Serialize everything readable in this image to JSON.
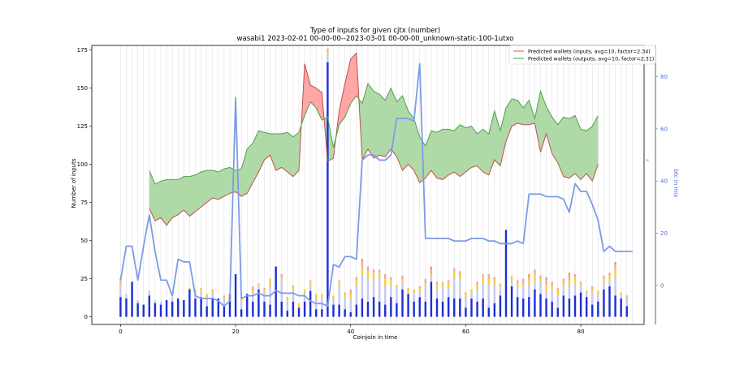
{
  "chart_data": {
    "type": "bar+line+area",
    "title": "Type of inputs for given cjtx (number)",
    "subtitle": "wasabi1 2023-02-01 00-00-00--2023-03-01 00-00-00_unknown-static-100-1utxo",
    "xlabel": "Coinjoin in time",
    "ylabel": "Number of inputs",
    "y2label": "btc in mix",
    "xlim": [
      -5,
      91
    ],
    "ylim": [
      -5,
      178
    ],
    "y2lim": [
      -15,
      92
    ],
    "xticks": [
      0,
      20,
      40,
      60,
      80
    ],
    "yticks": [
      0,
      25,
      50,
      75,
      100,
      125,
      150,
      175
    ],
    "y2ticks": [
      0,
      20,
      40,
      60,
      80
    ],
    "right_marker_label": "∞",
    "legend": {
      "placement": "top-right",
      "entries": [
        {
          "label": "Predicted wallets (inputs, avg=10, factor=2.34)",
          "color": "#e8756a"
        },
        {
          "label": "Predicted wallets (outputs, avg=10, factor=2.31)",
          "color": "#58b858"
        }
      ]
    },
    "colors": {
      "bar_blue": "#1c2fd6",
      "bar_lavender": "#c6c9f2",
      "bar_yellow": "#f4cf3a",
      "bar_pink": "#f3a4a4",
      "bar_orange": "#f0a050",
      "line_inputs": "#c0504d",
      "line_outputs": "#4fa04f",
      "fill_green": "#b0d9a8",
      "fill_red": "#ffa6a6",
      "btc_line": "#7e9be4",
      "grid": "#dddddd"
    },
    "predicted_x": [
      5,
      6,
      7,
      8,
      9,
      10,
      11,
      12,
      13,
      14,
      15,
      16,
      17,
      18,
      19,
      20,
      21,
      22,
      23,
      24,
      25,
      26,
      27,
      28,
      29,
      30,
      31,
      32,
      33,
      34,
      35,
      36,
      37,
      38,
      39,
      40,
      41,
      42,
      43,
      44,
      45,
      46,
      47,
      48,
      49,
      50,
      51,
      52,
      53,
      54,
      55,
      56,
      57,
      58,
      59,
      60,
      61,
      62,
      63,
      64,
      65,
      66,
      67,
      68,
      69,
      70,
      71,
      72,
      73,
      74,
      75,
      76,
      77,
      78,
      79,
      80,
      81,
      82,
      83
    ],
    "predicted_inputs": [
      71,
      63,
      65,
      60,
      65,
      67,
      70,
      66,
      69,
      72,
      75,
      78,
      77,
      79,
      81,
      82,
      79,
      81,
      88,
      95,
      103,
      106,
      96,
      98,
      95,
      92,
      96,
      166,
      152,
      150,
      147,
      102,
      104,
      135,
      153,
      169,
      173,
      103,
      110,
      104,
      106,
      105,
      110,
      105,
      96,
      100,
      96,
      88,
      91,
      96,
      91,
      90,
      93,
      95,
      92,
      95,
      98,
      99,
      95,
      93,
      103,
      99,
      115,
      125,
      127,
      126,
      126,
      127,
      108,
      120,
      107,
      101,
      92,
      91,
      94,
      90,
      94,
      89,
      100
    ],
    "predicted_outputs": [
      96,
      87,
      89,
      90,
      90,
      90,
      92,
      92,
      93,
      95,
      96,
      96,
      95,
      97,
      98,
      96,
      97,
      110,
      114,
      122,
      121,
      120,
      120,
      120,
      121,
      118,
      121,
      132,
      141,
      137,
      129,
      131,
      111,
      126,
      131,
      140,
      145,
      140,
      153,
      148,
      146,
      142,
      150,
      141,
      145,
      135,
      130,
      118,
      112,
      122,
      121,
      123,
      123,
      122,
      126,
      124,
      125,
      120,
      123,
      120,
      135,
      122,
      137,
      143,
      142,
      137,
      142,
      130,
      148,
      138,
      131,
      126,
      131,
      130,
      132,
      123,
      122,
      125,
      132
    ],
    "btc_x": [
      0,
      1,
      2,
      3,
      4,
      5,
      6,
      7,
      8,
      9,
      10,
      11,
      12,
      13,
      14,
      15,
      16,
      17,
      18,
      19,
      20,
      21,
      22,
      23,
      24,
      25,
      26,
      27,
      28,
      29,
      30,
      31,
      32,
      33,
      34,
      35,
      36,
      37,
      38,
      39,
      40,
      41,
      42,
      43,
      44,
      45,
      46,
      47,
      48,
      49,
      50,
      51,
      52,
      53,
      54,
      55,
      56,
      57,
      58,
      59,
      60,
      61,
      62,
      63,
      64,
      65,
      66,
      67,
      68,
      69,
      70,
      71,
      72,
      73,
      74,
      75,
      76,
      77,
      78,
      79,
      80,
      81,
      82,
      83,
      84,
      85,
      86,
      87,
      88,
      89
    ],
    "btc_in_mix": [
      2,
      15,
      15,
      2,
      15,
      27,
      13,
      2,
      2,
      -4,
      10,
      9,
      9,
      -4,
      -5,
      -5,
      -5,
      -6,
      -8,
      -6,
      72,
      -5,
      -4,
      -4,
      -3,
      -4,
      -4,
      -2,
      -3,
      -3,
      -3,
      -4,
      -4,
      -6,
      -7,
      -7,
      -8,
      8,
      7,
      11,
      11,
      10,
      48,
      50,
      50,
      48,
      48,
      50,
      64,
      64,
      64,
      63,
      85,
      18,
      18,
      18,
      18,
      18,
      17,
      17,
      17,
      18,
      18,
      18,
      17,
      17,
      16,
      16,
      16,
      17,
      16,
      35,
      35,
      35,
      34,
      34,
      34,
      33,
      28,
      39,
      36,
      36,
      31,
      25,
      13,
      15,
      13,
      13,
      13,
      13
    ],
    "bars": [
      {
        "x": 0,
        "blue": 13,
        "lavender": 8,
        "yellow": 1,
        "pink": 3,
        "orange": 0
      },
      {
        "x": 1,
        "blue": 12,
        "lavender": 3,
        "yellow": 0,
        "pink": 0,
        "orange": 0
      },
      {
        "x": 2,
        "blue": 23,
        "lavender": 0,
        "yellow": 0,
        "pink": 0,
        "orange": 0
      },
      {
        "x": 3,
        "blue": 9,
        "lavender": 2,
        "yellow": 0,
        "pink": 0,
        "orange": 0
      },
      {
        "x": 4,
        "blue": 8,
        "lavender": 0,
        "yellow": 0,
        "pink": 0,
        "orange": 0
      },
      {
        "x": 5,
        "blue": 14,
        "lavender": 3,
        "yellow": 0,
        "pink": 0,
        "orange": 0
      },
      {
        "x": 6,
        "blue": 9,
        "lavender": 2,
        "yellow": 0,
        "pink": 0,
        "orange": 0
      },
      {
        "x": 7,
        "blue": 8,
        "lavender": 2,
        "yellow": 0,
        "pink": 0,
        "orange": 0
      },
      {
        "x": 8,
        "blue": 11,
        "lavender": 0,
        "yellow": 0,
        "pink": 0,
        "orange": 0
      },
      {
        "x": 9,
        "blue": 10,
        "lavender": 2,
        "yellow": 1,
        "pink": 0,
        "orange": 0
      },
      {
        "x": 10,
        "blue": 12,
        "lavender": 0,
        "yellow": 0,
        "pink": 0,
        "orange": 0
      },
      {
        "x": 11,
        "blue": 11,
        "lavender": 0,
        "yellow": 0,
        "pink": 0,
        "orange": 0
      },
      {
        "x": 12,
        "blue": 18,
        "lavender": 0,
        "yellow": 1,
        "pink": 0,
        "orange": 0
      },
      {
        "x": 13,
        "blue": 12,
        "lavender": 4,
        "yellow": 2,
        "pink": 0,
        "orange": 0
      },
      {
        "x": 14,
        "blue": 13,
        "lavender": 4,
        "yellow": 2,
        "pink": 0,
        "orange": 0
      },
      {
        "x": 15,
        "blue": 7,
        "lavender": 6,
        "yellow": 2,
        "pink": 0,
        "orange": 0
      },
      {
        "x": 16,
        "blue": 12,
        "lavender": 3,
        "yellow": 2,
        "pink": 1,
        "orange": 0
      },
      {
        "x": 17,
        "blue": 12,
        "lavender": 0,
        "yellow": 0,
        "pink": 0,
        "orange": 0
      },
      {
        "x": 18,
        "blue": 7,
        "lavender": 4,
        "yellow": 2,
        "pink": 1,
        "orange": 0
      },
      {
        "x": 19,
        "blue": 15,
        "lavender": 0,
        "yellow": 0,
        "pink": 0,
        "orange": 0
      },
      {
        "x": 20,
        "blue": 28,
        "lavender": 0,
        "yellow": 0,
        "pink": 0,
        "orange": 0
      },
      {
        "x": 21,
        "blue": 5,
        "lavender": 5,
        "yellow": 2,
        "pink": 1,
        "orange": 0
      },
      {
        "x": 22,
        "blue": 15,
        "lavender": 0,
        "yellow": 0,
        "pink": 0,
        "orange": 0
      },
      {
        "x": 23,
        "blue": 10,
        "lavender": 5,
        "yellow": 2,
        "pink": 3,
        "orange": 0
      },
      {
        "x": 24,
        "blue": 18,
        "lavender": 2,
        "yellow": 2,
        "pink": 0,
        "orange": 0
      },
      {
        "x": 25,
        "blue": 10,
        "lavender": 6,
        "yellow": 2,
        "pink": 1,
        "orange": 0
      },
      {
        "x": 26,
        "blue": 8,
        "lavender": 12,
        "yellow": 5,
        "pink": 0,
        "orange": 0
      },
      {
        "x": 27,
        "blue": 33,
        "lavender": 0,
        "yellow": 0,
        "pink": 0,
        "orange": 0
      },
      {
        "x": 28,
        "blue": 10,
        "lavender": 14,
        "yellow": 2,
        "pink": 2,
        "orange": 0
      },
      {
        "x": 29,
        "blue": 4,
        "lavender": 6,
        "yellow": 2,
        "pink": 1,
        "orange": 0
      },
      {
        "x": 30,
        "blue": 10,
        "lavender": 8,
        "yellow": 3,
        "pink": 0,
        "orange": 0
      },
      {
        "x": 31,
        "blue": 6,
        "lavender": 0,
        "yellow": 3,
        "pink": 0,
        "orange": 0
      },
      {
        "x": 32,
        "blue": 10,
        "lavender": 6,
        "yellow": 2,
        "pink": 0,
        "orange": 0
      },
      {
        "x": 33,
        "blue": 17,
        "lavender": 4,
        "yellow": 2,
        "pink": 1,
        "orange": 0
      },
      {
        "x": 34,
        "blue": 5,
        "lavender": 6,
        "yellow": 4,
        "pink": 0,
        "orange": 0
      },
      {
        "x": 35,
        "blue": 5,
        "lavender": 8,
        "yellow": 2,
        "pink": 0,
        "orange": 0
      },
      {
        "x": 36,
        "blue": 167,
        "lavender": 5,
        "yellow": 2,
        "pink": 2,
        "orange": 0
      },
      {
        "x": 37,
        "blue": 8,
        "lavender": 4,
        "yellow": 2,
        "pink": 0,
        "orange": 0
      },
      {
        "x": 38,
        "blue": 8,
        "lavender": 12,
        "yellow": 4,
        "pink": 0,
        "orange": 0
      },
      {
        "x": 39,
        "blue": 5,
        "lavender": 8,
        "yellow": 2,
        "pink": 1,
        "orange": 0
      },
      {
        "x": 40,
        "blue": 3,
        "lavender": 8,
        "yellow": 4,
        "pink": 3,
        "orange": 0
      },
      {
        "x": 41,
        "blue": 8,
        "lavender": 12,
        "yellow": 4,
        "pink": 2,
        "orange": 0
      },
      {
        "x": 42,
        "blue": 12,
        "lavender": 15,
        "yellow": 5,
        "pink": 4,
        "orange": 2
      },
      {
        "x": 43,
        "blue": 10,
        "lavender": 15,
        "yellow": 5,
        "pink": 3,
        "orange": 0
      },
      {
        "x": 44,
        "blue": 13,
        "lavender": 12,
        "yellow": 4,
        "pink": 2,
        "orange": 0
      },
      {
        "x": 45,
        "blue": 10,
        "lavender": 16,
        "yellow": 3,
        "pink": 2,
        "orange": 0
      },
      {
        "x": 46,
        "blue": 8,
        "lavender": 12,
        "yellow": 5,
        "pink": 3,
        "orange": 0
      },
      {
        "x": 47,
        "blue": 13,
        "lavender": 8,
        "yellow": 3,
        "pink": 2,
        "orange": 0
      },
      {
        "x": 48,
        "blue": 9,
        "lavender": 10,
        "yellow": 2,
        "pink": 0,
        "orange": 0
      },
      {
        "x": 49,
        "blue": 18,
        "lavender": 5,
        "yellow": 2,
        "pink": 2,
        "orange": 0
      },
      {
        "x": 50,
        "blue": 15,
        "lavender": 0,
        "yellow": 3,
        "pink": 1,
        "orange": 0
      },
      {
        "x": 51,
        "blue": 10,
        "lavender": 6,
        "yellow": 2,
        "pink": 0,
        "orange": 0
      },
      {
        "x": 52,
        "blue": 13,
        "lavender": 4,
        "yellow": 2,
        "pink": 1,
        "orange": 0
      },
      {
        "x": 53,
        "blue": 10,
        "lavender": 10,
        "yellow": 2,
        "pink": 3,
        "orange": 0
      },
      {
        "x": 54,
        "blue": 23,
        "lavender": 3,
        "yellow": 2,
        "pink": 3,
        "orange": 2
      },
      {
        "x": 55,
        "blue": 12,
        "lavender": 6,
        "yellow": 3,
        "pink": 2,
        "orange": 0
      },
      {
        "x": 56,
        "blue": 10,
        "lavender": 10,
        "yellow": 3,
        "pink": 0,
        "orange": 0
      },
      {
        "x": 57,
        "blue": 13,
        "lavender": 6,
        "yellow": 3,
        "pink": 2,
        "orange": 0
      },
      {
        "x": 58,
        "blue": 12,
        "lavender": 14,
        "yellow": 4,
        "pink": 2,
        "orange": 0
      },
      {
        "x": 59,
        "blue": 12,
        "lavender": 12,
        "yellow": 4,
        "pink": 2,
        "orange": 0
      },
      {
        "x": 60,
        "blue": 6,
        "lavender": 6,
        "yellow": 3,
        "pink": 1,
        "orange": 0
      },
      {
        "x": 61,
        "blue": 12,
        "lavender": 4,
        "yellow": 2,
        "pink": 0,
        "orange": 0
      },
      {
        "x": 62,
        "blue": 10,
        "lavender": 8,
        "yellow": 3,
        "pink": 2,
        "orange": 0
      },
      {
        "x": 63,
        "blue": 12,
        "lavender": 10,
        "yellow": 4,
        "pink": 2,
        "orange": 0
      },
      {
        "x": 64,
        "blue": 6,
        "lavender": 15,
        "yellow": 4,
        "pink": 3,
        "orange": 0
      },
      {
        "x": 65,
        "blue": 9,
        "lavender": 12,
        "yellow": 3,
        "pink": 2,
        "orange": 0
      },
      {
        "x": 66,
        "blue": 14,
        "lavender": 6,
        "yellow": 2,
        "pink": 0,
        "orange": 0
      },
      {
        "x": 67,
        "blue": 57,
        "lavender": 0,
        "yellow": 0,
        "pink": 0,
        "orange": 0
      },
      {
        "x": 68,
        "blue": 20,
        "lavender": 5,
        "yellow": 2,
        "pink": 0,
        "orange": 0
      },
      {
        "x": 69,
        "blue": 13,
        "lavender": 6,
        "yellow": 3,
        "pink": 2,
        "orange": 0
      },
      {
        "x": 70,
        "blue": 12,
        "lavender": 8,
        "yellow": 2,
        "pink": 3,
        "orange": 0
      },
      {
        "x": 71,
        "blue": 13,
        "lavender": 8,
        "yellow": 3,
        "pink": 2,
        "orange": 2
      },
      {
        "x": 72,
        "blue": 18,
        "lavender": 6,
        "yellow": 4,
        "pink": 3,
        "orange": 0
      },
      {
        "x": 73,
        "blue": 15,
        "lavender": 8,
        "yellow": 2,
        "pink": 2,
        "orange": 0
      },
      {
        "x": 74,
        "blue": 12,
        "lavender": 5,
        "yellow": 4,
        "pink": 3,
        "orange": 2
      },
      {
        "x": 75,
        "blue": 10,
        "lavender": 8,
        "yellow": 3,
        "pink": 2,
        "orange": 0
      },
      {
        "x": 76,
        "blue": 6,
        "lavender": 8,
        "yellow": 4,
        "pink": 1,
        "orange": 0
      },
      {
        "x": 77,
        "blue": 14,
        "lavender": 6,
        "yellow": 3,
        "pink": 2,
        "orange": 0
      },
      {
        "x": 78,
        "blue": 12,
        "lavender": 8,
        "yellow": 4,
        "pink": 3,
        "orange": 2
      },
      {
        "x": 79,
        "blue": 14,
        "lavender": 8,
        "yellow": 4,
        "pink": 2,
        "orange": 0
      },
      {
        "x": 80,
        "blue": 16,
        "lavender": 4,
        "yellow": 2,
        "pink": 1,
        "orange": 0
      },
      {
        "x": 81,
        "blue": 13,
        "lavender": 2,
        "yellow": 2,
        "pink": 0,
        "orange": 0
      },
      {
        "x": 82,
        "blue": 8,
        "lavender": 8,
        "yellow": 2,
        "pink": 2,
        "orange": 0
      },
      {
        "x": 83,
        "blue": 10,
        "lavender": 4,
        "yellow": 3,
        "pink": 0,
        "orange": 0
      },
      {
        "x": 84,
        "blue": 18,
        "lavender": 4,
        "yellow": 3,
        "pink": 2,
        "orange": 0
      },
      {
        "x": 85,
        "blue": 20,
        "lavender": 4,
        "yellow": 3,
        "pink": 2,
        "orange": 0
      },
      {
        "x": 86,
        "blue": 14,
        "lavender": 12,
        "yellow": 5,
        "pink": 3,
        "orange": 2
      },
      {
        "x": 87,
        "blue": 12,
        "lavender": 2,
        "yellow": 2,
        "pink": 0,
        "orange": 0
      },
      {
        "x": 88,
        "blue": 7,
        "lavender": 4,
        "yellow": 2,
        "pink": 1,
        "orange": 0
      }
    ]
  }
}
